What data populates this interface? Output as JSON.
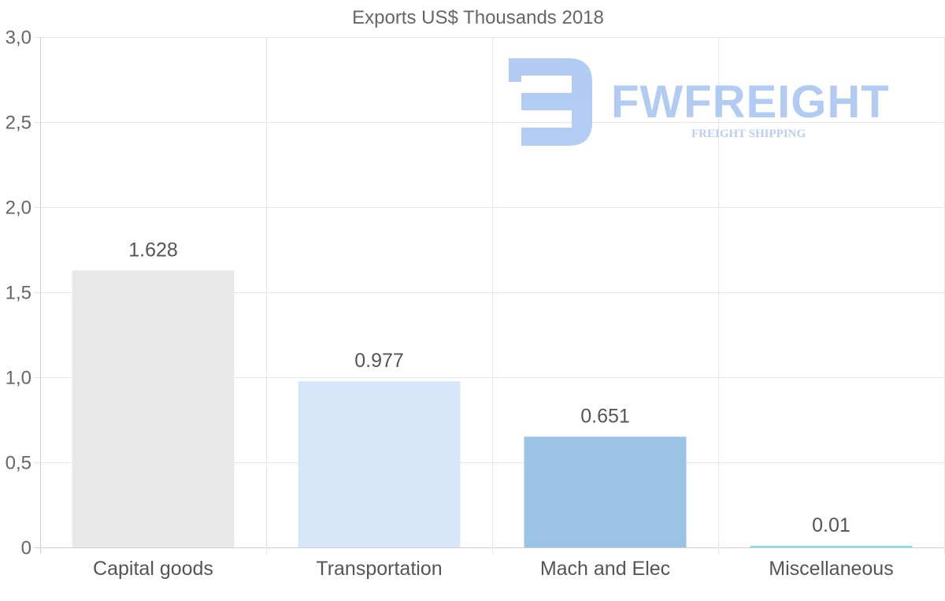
{
  "chart_data": {
    "type": "bar",
    "title": "Exports US$ Thousands 2018",
    "categories": [
      "Capital goods",
      "Transportation",
      "Mach and Elec",
      "Miscellaneous"
    ],
    "values": [
      1.628,
      0.977,
      0.651,
      0.01
    ],
    "value_labels": [
      "1.628",
      "0.977",
      "0.651",
      "0.01"
    ],
    "bar_colors": [
      "#e8e8e8",
      "#d7e7f9",
      "#9bc3e6",
      "#7fe0e6"
    ],
    "ylim": [
      0,
      3
    ],
    "yticks": [
      0,
      0.5,
      1,
      1.5,
      2,
      2.5,
      3
    ],
    "ytick_labels": [
      "0",
      "0,5",
      "1,0",
      "1,5",
      "2,0",
      "2,5",
      "3,0"
    ],
    "xlabel": "",
    "ylabel": "",
    "grid": true,
    "legend": "none"
  },
  "watermark": {
    "name": "FWFREIGHT",
    "tagline": "FREIGHT SHIPPING",
    "color": "#aac6f2"
  }
}
